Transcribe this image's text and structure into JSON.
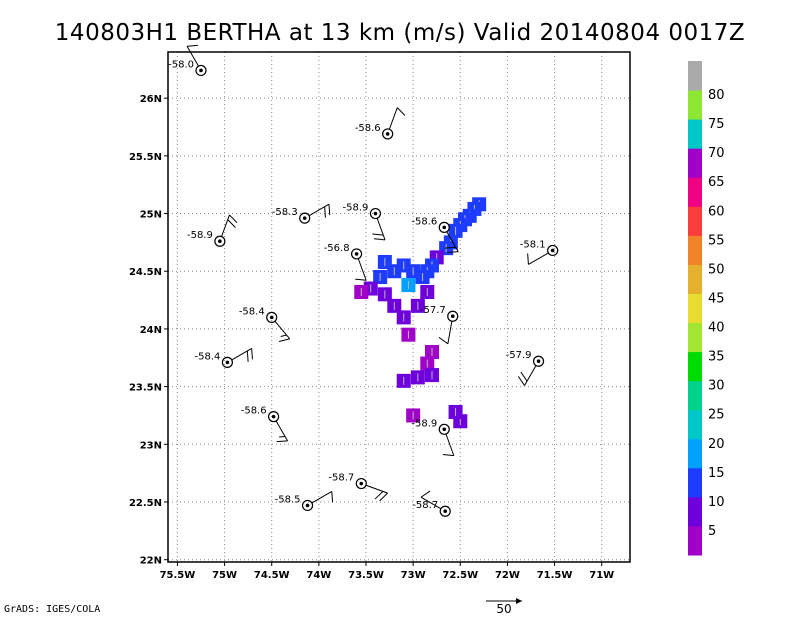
{
  "title": "140803H1 BERTHA at 13 km (m/s) Valid 20140804 0017Z",
  "credit": "GrADS: IGES/COLA",
  "reference_vector": {
    "label": "50"
  },
  "axes": {
    "x_ticks": [
      {
        "lon": -75.5,
        "label": "75.5W"
      },
      {
        "lon": -75.0,
        "label": "75W"
      },
      {
        "lon": -74.5,
        "label": "74.5W"
      },
      {
        "lon": -74.0,
        "label": "74W"
      },
      {
        "lon": -73.5,
        "label": "73.5W"
      },
      {
        "lon": -73.0,
        "label": "73W"
      },
      {
        "lon": -72.5,
        "label": "72.5W"
      },
      {
        "lon": -72.0,
        "label": "72W"
      },
      {
        "lon": -71.5,
        "label": "71.5W"
      },
      {
        "lon": -71.0,
        "label": "71W"
      }
    ],
    "y_ticks": [
      {
        "lat": 22.0,
        "label": "22N"
      },
      {
        "lat": 22.5,
        "label": "22.5N"
      },
      {
        "lat": 23.0,
        "label": "23N"
      },
      {
        "lat": 23.5,
        "label": "23.5N"
      },
      {
        "lat": 24.0,
        "label": "24N"
      },
      {
        "lat": 24.5,
        "label": "24.5N"
      },
      {
        "lat": 25.0,
        "label": "25N"
      },
      {
        "lat": 25.5,
        "label": "25.5N"
      },
      {
        "lat": 26.0,
        "label": "26N"
      }
    ],
    "lon_range": [
      -75.6,
      -70.7
    ],
    "lat_range": [
      21.98,
      26.4
    ],
    "grid": "dotted"
  },
  "colorbar": {
    "labels": [
      "5",
      "10",
      "15",
      "20",
      "25",
      "30",
      "35",
      "40",
      "45",
      "50",
      "55",
      "60",
      "65",
      "70",
      "75",
      "80"
    ],
    "colors": [
      "#a000c8",
      "#6e00dc",
      "#1e3cff",
      "#00a0ff",
      "#00c8c8",
      "#00d28c",
      "#00dc00",
      "#a0e632",
      "#e6dc32",
      "#e6af2d",
      "#f08228",
      "#fa3c3c",
      "#f00082",
      "#a000c8",
      "#00c8c8",
      "#8ce632",
      "#aaaaaa"
    ]
  },
  "dropsondes": [
    {
      "lon": -75.25,
      "lat": 26.24,
      "label": "-58.0",
      "wind_dir": 330,
      "barbs": [
        10
      ]
    },
    {
      "lon": -73.27,
      "lat": 25.69,
      "label": "-58.6",
      "wind_dir": 20,
      "barbs": [
        10
      ]
    },
    {
      "lon": -74.15,
      "lat": 24.96,
      "label": "-58.3",
      "wind_dir": 60,
      "barbs": [
        10,
        10
      ]
    },
    {
      "lon": -73.4,
      "lat": 25.0,
      "label": "-58.9",
      "wind_dir": 160,
      "barbs": [
        10,
        10
      ]
    },
    {
      "lon": -75.05,
      "lat": 24.76,
      "label": "-58.9",
      "wind_dir": 20,
      "barbs": [
        10,
        10
      ]
    },
    {
      "lon": -72.67,
      "lat": 24.88,
      "label": "-58.6",
      "wind_dir": 150,
      "barbs": [
        10,
        10
      ]
    },
    {
      "lon": -71.52,
      "lat": 24.68,
      "label": "-58.1",
      "wind_dir": 240,
      "barbs": [
        10
      ]
    },
    {
      "lon": -73.6,
      "lat": 24.65,
      "label": "-56.8",
      "wind_dir": 160,
      "barbs": [
        10
      ]
    },
    {
      "lon": -74.5,
      "lat": 24.1,
      "label": "-58.4",
      "wind_dir": 140,
      "barbs": [
        10,
        5
      ]
    },
    {
      "lon": -72.58,
      "lat": 24.11,
      "label": "-57.7",
      "wind_dir": 190,
      "barbs": [
        10
      ]
    },
    {
      "lon": -74.97,
      "lat": 23.71,
      "label": "-58.4",
      "wind_dir": 60,
      "barbs": [
        10,
        10
      ]
    },
    {
      "lon": -71.67,
      "lat": 23.72,
      "label": "-57.9",
      "wind_dir": 210,
      "barbs": [
        10,
        10
      ]
    },
    {
      "lon": -74.48,
      "lat": 23.24,
      "label": "-58.6",
      "wind_dir": 150,
      "barbs": [
        10,
        5
      ]
    },
    {
      "lon": -72.67,
      "lat": 23.13,
      "label": "-58.9",
      "wind_dir": 160,
      "barbs": [
        10
      ]
    },
    {
      "lon": -73.55,
      "lat": 22.66,
      "label": "-58.7",
      "wind_dir": 110,
      "barbs": [
        10,
        10
      ]
    },
    {
      "lon": -74.12,
      "lat": 22.47,
      "label": "-58.5",
      "wind_dir": 60,
      "barbs": [
        10
      ]
    },
    {
      "lon": -72.66,
      "lat": 22.42,
      "label": "-58.7",
      "wind_dir": 300,
      "barbs": [
        10
      ]
    }
  ],
  "wind_field_cells": [
    {
      "lon": -72.3,
      "lat": 25.08,
      "v": 12
    },
    {
      "lon": -72.35,
      "lat": 25.04,
      "v": 12
    },
    {
      "lon": -72.4,
      "lat": 24.98,
      "v": 12
    },
    {
      "lon": -72.45,
      "lat": 24.95,
      "v": 11
    },
    {
      "lon": -72.5,
      "lat": 24.9,
      "v": 11
    },
    {
      "lon": -72.55,
      "lat": 24.85,
      "v": 10
    },
    {
      "lon": -72.6,
      "lat": 24.75,
      "v": 10
    },
    {
      "lon": -72.65,
      "lat": 24.7,
      "v": 10
    },
    {
      "lon": -72.75,
      "lat": 24.62,
      "v": 8
    },
    {
      "lon": -72.8,
      "lat": 24.55,
      "v": 10
    },
    {
      "lon": -72.85,
      "lat": 24.5,
      "v": 11
    },
    {
      "lon": -72.9,
      "lat": 24.45,
      "v": 12
    },
    {
      "lon": -73.0,
      "lat": 24.5,
      "v": 12
    },
    {
      "lon": -73.05,
      "lat": 24.38,
      "v": 16
    },
    {
      "lon": -73.1,
      "lat": 24.55,
      "v": 12
    },
    {
      "lon": -73.2,
      "lat": 24.5,
      "v": 11
    },
    {
      "lon": -73.3,
      "lat": 24.58,
      "v": 10
    },
    {
      "lon": -73.35,
      "lat": 24.45,
      "v": 10
    },
    {
      "lon": -73.45,
      "lat": 24.35,
      "v": 6
    },
    {
      "lon": -73.55,
      "lat": 24.32,
      "v": 4
    },
    {
      "lon": -73.3,
      "lat": 24.3,
      "v": 5
    },
    {
      "lon": -73.2,
      "lat": 24.2,
      "v": 5
    },
    {
      "lon": -73.1,
      "lat": 24.1,
      "v": 5
    },
    {
      "lon": -73.05,
      "lat": 23.95,
      "v": 4
    },
    {
      "lon": -72.95,
      "lat": 24.2,
      "v": 7
    },
    {
      "lon": -72.85,
      "lat": 24.32,
      "v": 9
    },
    {
      "lon": -72.8,
      "lat": 23.8,
      "v": 4
    },
    {
      "lon": -72.85,
      "lat": 23.7,
      "v": 4
    },
    {
      "lon": -72.8,
      "lat": 23.6,
      "v": 5
    },
    {
      "lon": -72.95,
      "lat": 23.58,
      "v": 5
    },
    {
      "lon": -73.1,
      "lat": 23.55,
      "v": 5
    },
    {
      "lon": -73.0,
      "lat": 23.25,
      "v": 4
    },
    {
      "lon": -72.5,
      "lat": 23.2,
      "v": 5
    },
    {
      "lon": -72.55,
      "lat": 23.28,
      "v": 6
    }
  ]
}
